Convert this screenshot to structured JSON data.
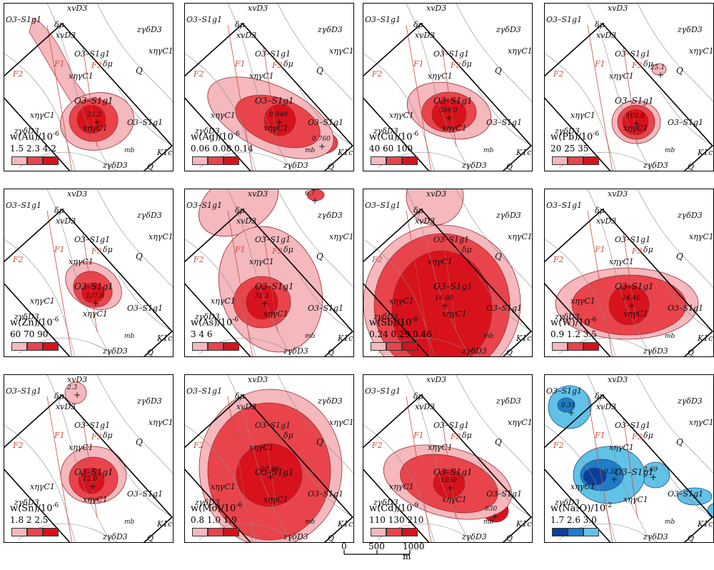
{
  "panels": [
    {
      "elem": "Au",
      "title": "w(Au)/10",
      "exp": "-6",
      "levels": [
        "1.5",
        "2.3",
        "4.2"
      ],
      "peak": "21.2",
      "scheme": "red",
      "labels": {
        "top": "xvD3",
        "tl": "O3–S1g1",
        "dmu": "δμ",
        "xvd": "xvD3",
        "o3mid": "O3–S1g1",
        "dmu2": "δμ",
        "xnlc1": "xηγC1",
        "o3c": "O3–S1g1",
        "xnlc2": "xηγC1",
        "xnlc3": "xηγC1",
        "o3r": "O3–S1g1",
        "zgd1": "zγδD3",
        "zgd2": "zγδD3",
        "zgd3": "zγδD3",
        "xnr": "xηγC1",
        "q1": "Q",
        "q2": "Q",
        "mb": "mb",
        "k1c": "K1c",
        "f1": "F1",
        "f2": "F2",
        "f3": "F3"
      }
    },
    {
      "elem": "Ag",
      "title": "w(Ag)/10",
      "exp": "-6",
      "levels": [
        "0.06",
        "0.08",
        "0.14"
      ],
      "peak": "0.940",
      "peak2": "0.760",
      "scheme": "red",
      "labels": {
        "top": "xvD3",
        "tl": "O3–S1g1",
        "dmu": "δμ",
        "xvd": "xvD3",
        "o3mid": "O3–S1g1",
        "dmu2": "δμ",
        "xnlc1": "xηγC1",
        "o3c": "O3–S1g1",
        "xnlc2": "xηγC1",
        "xnlc3": "xηγC1",
        "o3r": "O3–S1g1",
        "zgd1": "zγδD3",
        "zgd2": "zγδD3",
        "zgd3": "zγδD3",
        "xnr": "xηγC1",
        "q1": "Q",
        "q2": "Q",
        "mb": "mb",
        "k1c": "K1c",
        "f1": "F1",
        "f2": "F2",
        "f3": "F3"
      }
    },
    {
      "elem": "Cu",
      "title": "w(Cu)/10",
      "exp": "-6",
      "levels": [
        "40",
        "60",
        "100"
      ],
      "peak": "384.0",
      "scheme": "red",
      "labels": {
        "top": "xvD3",
        "tl": "O3–S1g1",
        "dmu": "δμ",
        "xvd": "xvD3",
        "o3mid": "O3–S1g1",
        "dmu2": "δμ",
        "xnlc1": "xηγC1",
        "o3c": "O3–S1g1",
        "xnlc2": "xηγC1",
        "xnlc3": "xηγC1",
        "o3r": "O3–S1g1",
        "zgd1": "zγδD3",
        "zgd2": "zγδD3",
        "zgd3": "zγδD3",
        "xnr": "xηγC1",
        "q1": "Q",
        "q2": "Q",
        "mb": "mb",
        "k1c": "K1c",
        "f1": "F1",
        "f2": "F2",
        "f3": "F3"
      }
    },
    {
      "elem": "Pb",
      "title": "w(Pb)/10",
      "exp": "-6",
      "levels": [
        "20",
        "25",
        "35"
      ],
      "peak": "103.0",
      "peak2": "25.1",
      "scheme": "red",
      "labels": {
        "top": "xvD3",
        "tl": "O3–S1g1",
        "dmu": "δμ",
        "xvd": "xvD3",
        "o3mid": "O3–S1g1",
        "dmu2": "δμ",
        "xnlc1": "xηγC1",
        "o3c": "O3–S1g1",
        "xnlc2": "xηγC1",
        "xnlc3": "xηγC1",
        "o3r": "O3–S1g1",
        "zgd1": "zγδD3",
        "zgd2": "zγδD3",
        "zgd3": "zγδD3",
        "xnr": "xηγC1",
        "q1": "Q",
        "q2": "Q",
        "mb": "mb",
        "k1c": "K1c",
        "f1": "F1",
        "f2": "F2",
        "f3": "F3"
      }
    },
    {
      "elem": "Zn",
      "title": "w(Zn)/10",
      "exp": "-6",
      "levels": [
        "60",
        "70",
        "90"
      ],
      "peak": "127.0",
      "scheme": "red",
      "labels": {
        "top": "xvD3",
        "tl": "O3–S1g1",
        "dmu": "δμ",
        "xvd": "xvD3",
        "o3mid": "O3–S1g1",
        "dmu2": "δμ",
        "xnlc1": "xηγC1",
        "o3c": "O3–S1g1",
        "xnlc2": "xηγC1",
        "xnlc3": "xηγC1",
        "o3r": "O3–S1g1",
        "zgd1": "zγδD3",
        "zgd2": "zγδD3",
        "zgd3": "zγδD3",
        "xnr": "xηγC1",
        "q1": "Q",
        "q2": "Q",
        "mb": "mb",
        "k1c": "K1c",
        "f1": "F1",
        "f2": "F2",
        "f3": "F3"
      }
    },
    {
      "elem": "As",
      "title": "w(As)/10",
      "exp": "-6",
      "levels": [
        "3",
        "4",
        "6"
      ],
      "peak": "31.1",
      "peak2": "6.7",
      "scheme": "red",
      "labels": {
        "top": "xvD3",
        "tl": "O3–S1g1",
        "dmu": "δμ",
        "xvd": "xvD3",
        "o3mid": "O3–S1g1",
        "dmu2": "δμ",
        "xnlc1": "xηγC1",
        "o3c": "O3–S1g1",
        "xnlc2": "xηγC1",
        "xnlc3": "xηγC1",
        "o3r": "O3–S1g1",
        "zgd1": "zγδD3",
        "zgd2": "zγδD3",
        "zgd3": "zγδD3",
        "xnr": "xηγC1",
        "q1": "Q",
        "q2": "Q",
        "mb": "mb",
        "k1c": "K1c",
        "f1": "F1",
        "f2": "F2",
        "f3": "F3"
      }
    },
    {
      "elem": "Sb",
      "title": "w(Sb)/10",
      "exp": "-6",
      "levels": [
        "0.24",
        "0.29",
        "0.46"
      ],
      "peak": "16.80",
      "scheme": "red",
      "labels": {
        "top": "xvD3",
        "tl": "O3–S1g1",
        "dmu": "δμ",
        "xvd": "xvD3",
        "o3mid": "O3–S1g1",
        "dmu2": "δμ",
        "xnlc1": "xηγC1",
        "o3c": "O3–S1g1",
        "xnlc2": "xηγC1",
        "xnlc3": "xηγC1",
        "o3r": "O3–S1g1",
        "zgd1": "zγδD3",
        "zgd2": "zγδD3",
        "zgd3": "zγδD3",
        "xnr": "xηγC1",
        "q1": "Q",
        "q2": "Q",
        "mb": "mb",
        "k1c": "K1c",
        "f1": "F1",
        "f2": "F2",
        "f3": "F3"
      }
    },
    {
      "elem": "W",
      "title": "w(W)/10",
      "exp": "-6",
      "levels": [
        "0.9",
        "1.2",
        "3.5"
      ],
      "peak": "14.40",
      "scheme": "red",
      "labels": {
        "top": "xvD3",
        "tl": "O3–S1g1",
        "dmu": "δμ",
        "xvd": "xvD3",
        "o3mid": "O3–S1g1",
        "dmu2": "δμ",
        "xnlc1": "xηγC1",
        "o3c": "O3–S1g1",
        "xnlc2": "xηγC1",
        "xnlc3": "xηγC1",
        "o3r": "O3–S1g1",
        "zgd1": "zγδD3",
        "zgd2": "zγδD3",
        "zgd3": "zγδD3",
        "xnr": "xηγC1",
        "q1": "Q",
        "q2": "Q",
        "mb": "mb",
        "k1c": "K1c",
        "f1": "F1",
        "f2": "F2",
        "f3": "F3"
      }
    },
    {
      "elem": "Sn",
      "title": "w(Sn)/10",
      "exp": "-6",
      "levels": [
        "1.8",
        "2",
        "2.5"
      ],
      "peak": "12.0",
      "peak2": "2.3",
      "scheme": "red",
      "labels": {
        "top": "xvD3",
        "tl": "O3–S1g1",
        "dmu": "δμ",
        "xvd": "xvD3",
        "o3mid": "O3–S1g1",
        "dmu2": "δμ",
        "xnlc1": "xηγC1",
        "o3c": "O3–S1g1",
        "xnlc2": "xηγC1",
        "xnlc3": "xηγC1",
        "o3r": "O3–S1g1",
        "zgd1": "zγδD3",
        "zgd2": "zγδD3",
        "zgd3": "zγδD3",
        "xnr": "xηγC1",
        "q1": "Q",
        "q2": "Q",
        "mb": "mb",
        "k1c": "K1c",
        "f1": "F1",
        "f2": "F2",
        "f3": "F3"
      }
    },
    {
      "elem": "Mo",
      "title": "w(Mo)/10",
      "exp": "-6",
      "levels": [
        "0.8",
        "1.0",
        "1.9"
      ],
      "peak": "27.80",
      "scheme": "red",
      "labels": {
        "top": "xvD3",
        "tl": "O3–S1g1",
        "dmu": "δμ",
        "xvd": "xvD3",
        "o3mid": "O3–S1g1",
        "dmu2": "δμ",
        "xnlc1": "xηγC1",
        "o3c": "O3–S1g1",
        "xnlc2": "xηγC1",
        "xnlc3": "xηγC1",
        "o3r": "O3–S1g1",
        "zgd1": "zγδD3",
        "zgd2": "zγδD3",
        "zgd3": "zγδD3",
        "xnr": "xηγC1",
        "q1": "Q",
        "q2": "Q",
        "mb": "mb",
        "k1c": "K1c",
        "f1": "F1",
        "f2": "F2",
        "f3": "F3"
      }
    },
    {
      "elem": "Cd",
      "title": "w(Cd)/10",
      "exp": "-9",
      "levels": [
        "110",
        "130",
        "210"
      ],
      "peak": "1030",
      "peak2": "630",
      "scheme": "red",
      "labels": {
        "top": "xvD3",
        "tl": "O3–S1g1",
        "dmu": "δμ",
        "xvd": "xvD3",
        "o3mid": "O3–S1g1",
        "dmu2": "δμ",
        "xnlc1": "xηγC1",
        "o3c": "O3–S1g1",
        "xnlc2": "xηγC1",
        "xnlc3": "xηγC1",
        "o3r": "O3–S1g1",
        "zgd1": "zγδD3",
        "zgd2": "zγδD3",
        "zgd3": "zγδD3",
        "xnr": "xηγC1",
        "q1": "Q",
        "q2": "Q",
        "mb": "mb",
        "k1c": "K1c",
        "f1": "F1",
        "f2": "F2",
        "f3": "F3"
      }
    },
    {
      "elem": "Na2O",
      "title": "w(Na₂O)/10",
      "exp": "-2",
      "levels": [
        "1.7",
        "2.6",
        "3.0"
      ],
      "peak": "0.32",
      "peak2": "0.31",
      "peak3": "2.69",
      "scheme": "blue",
      "labels": {
        "top": "xvD3",
        "tl": "O3–S1g1",
        "dmu": "δμ",
        "xvd": "xvD3",
        "o3mid": "O3–S1g1",
        "dmu2": "δμ",
        "xnlc1": "xηγC1",
        "o3c": "O3–S1g1",
        "xnlc2": "xηγC1",
        "xnlc3": "xηγC1",
        "o3r": "O3–S1g1",
        "zgd1": "zγδD3",
        "zgd2": "zγδD3",
        "zgd3": "zγδD3",
        "xnr": "xηγC1",
        "q1": "Q",
        "q2": "Q",
        "mb": "mb",
        "k1c": "K1c",
        "f1": "F1",
        "f2": "F2",
        "f3": "F3"
      }
    }
  ],
  "colors": {
    "red": [
      "#f4b8bd",
      "#e9444c",
      "#d8121c"
    ],
    "blue": [
      "#62c1e6",
      "#1e7cc8",
      "#0c3f9a"
    ],
    "fault": "#c8503a",
    "geology": "#8c8c8c"
  },
  "scalebar": {
    "t0": "0",
    "t1": "500",
    "t2": "1000 m"
  }
}
